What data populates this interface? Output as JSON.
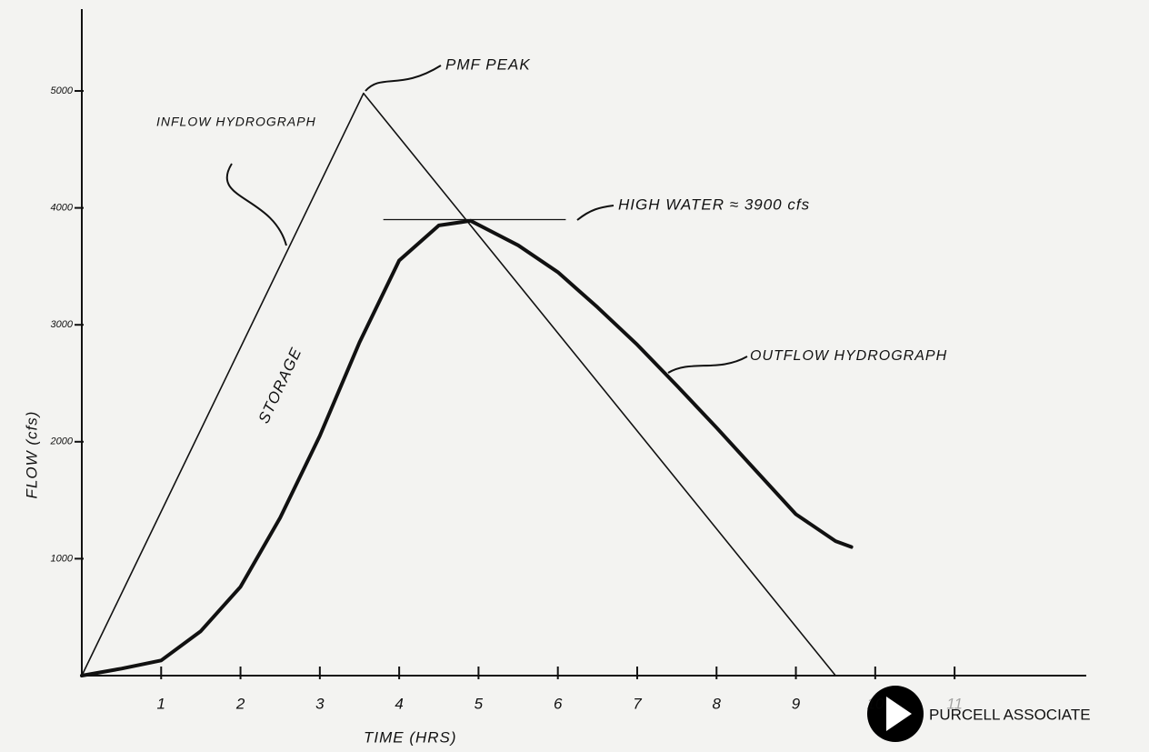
{
  "chart_data": {
    "type": "line",
    "x_label": "TIME (HRS)",
    "y_label": "FLOW (cfs)",
    "xlim": [
      0,
      12.66
    ],
    "ylim": [
      0,
      5700
    ],
    "xticks": [
      1,
      2,
      3,
      4,
      5,
      6,
      7,
      8,
      9,
      10,
      11
    ],
    "yticks": [
      1000,
      2000,
      3000,
      4000,
      5000
    ],
    "series": [
      {
        "name": "INFLOW HYDROGRAPH",
        "color": "#111111",
        "width": 1.6,
        "x": [
          0,
          3.55,
          9.5
        ],
        "values": [
          0,
          4980,
          0
        ]
      },
      {
        "name": "OUTFLOW HYDROGRAPH",
        "color": "#111111",
        "width": 4,
        "x": [
          0,
          0.5,
          1,
          1.5,
          2,
          2.5,
          3,
          3.5,
          4,
          4.5,
          4.9,
          5.5,
          6,
          6.5,
          7,
          7.5,
          8,
          8.5,
          9,
          9.5,
          9.7
        ],
        "values": [
          0,
          60,
          130,
          380,
          760,
          1350,
          2050,
          2850,
          3550,
          3850,
          3890,
          3680,
          3450,
          3150,
          2830,
          2480,
          2120,
          1750,
          1380,
          1150,
          1100
        ]
      }
    ],
    "reference_line": {
      "value": 3900,
      "x": [
        3.8,
        6.1
      ]
    },
    "annotations": [
      "PMF PEAK",
      "HIGH WATER ≈ 3900 cfs",
      "STORAGE"
    ],
    "logo_text": "PURCELL ASSOCIATE"
  }
}
